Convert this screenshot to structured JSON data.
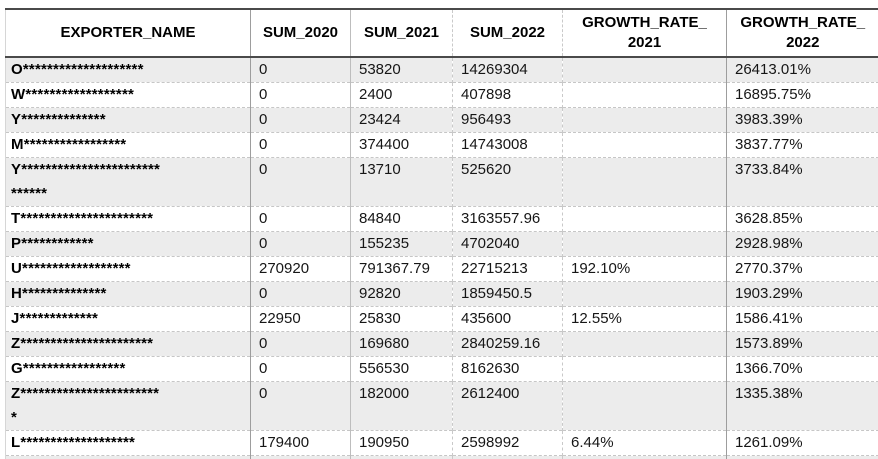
{
  "table": {
    "headers": [
      {
        "id": "exporter_name",
        "label": "EXPORTER_NAME"
      },
      {
        "id": "sum_2020",
        "label": "SUM_2020"
      },
      {
        "id": "sum_2021",
        "label": "SUM_2021"
      },
      {
        "id": "sum_2022",
        "label": "SUM_2022"
      },
      {
        "id": "growth_rate_2021",
        "label": "GROWTH_RATE_\n2021"
      },
      {
        "id": "growth_rate_2022",
        "label": "GROWTH_RATE_\n2022"
      }
    ],
    "rows": [
      {
        "exporter_name": "O********************",
        "sum_2020": "0",
        "sum_2021": "53820",
        "sum_2022": "14269304",
        "growth_rate_2021": "",
        "growth_rate_2022": "26413.01%"
      },
      {
        "exporter_name": "W******************",
        "sum_2020": "0",
        "sum_2021": "2400",
        "sum_2022": "407898",
        "growth_rate_2021": "",
        "growth_rate_2022": "16895.75%"
      },
      {
        "exporter_name": "Y**************",
        "sum_2020": "0",
        "sum_2021": "23424",
        "sum_2022": "956493",
        "growth_rate_2021": "",
        "growth_rate_2022": "3983.39%"
      },
      {
        "exporter_name": "M*****************",
        "sum_2020": "0",
        "sum_2021": "374400",
        "sum_2022": "14743008",
        "growth_rate_2021": "",
        "growth_rate_2022": "3837.77%"
      },
      {
        "exporter_name": "Y***********************\n******",
        "sum_2020": "0",
        "sum_2021": "13710",
        "sum_2022": "525620",
        "growth_rate_2021": "",
        "growth_rate_2022": "3733.84%"
      },
      {
        "exporter_name": "T**********************",
        "sum_2020": "0",
        "sum_2021": "84840",
        "sum_2022": "3163557.96",
        "growth_rate_2021": "",
        "growth_rate_2022": "3628.85%"
      },
      {
        "exporter_name": "P************",
        "sum_2020": "0",
        "sum_2021": "155235",
        "sum_2022": "4702040",
        "growth_rate_2021": "",
        "growth_rate_2022": "2928.98%"
      },
      {
        "exporter_name": "U******************",
        "sum_2020": "270920",
        "sum_2021": "791367.79",
        "sum_2022": "22715213",
        "growth_rate_2021": "192.10%",
        "growth_rate_2022": "2770.37%"
      },
      {
        "exporter_name": "H**************",
        "sum_2020": "0",
        "sum_2021": "92820",
        "sum_2022": "1859450.5",
        "growth_rate_2021": "",
        "growth_rate_2022": "1903.29%"
      },
      {
        "exporter_name": "J*************",
        "sum_2020": "22950",
        "sum_2021": "25830",
        "sum_2022": "435600",
        "growth_rate_2021": "12.55%",
        "growth_rate_2022": "1586.41%"
      },
      {
        "exporter_name": "Z**********************",
        "sum_2020": "0",
        "sum_2021": "169680",
        "sum_2022": "2840259.16",
        "growth_rate_2021": "",
        "growth_rate_2022": "1573.89%"
      },
      {
        "exporter_name": "G*****************",
        "sum_2020": "0",
        "sum_2021": "556530",
        "sum_2022": "8162630",
        "growth_rate_2021": "",
        "growth_rate_2022": "1366.70%"
      },
      {
        "exporter_name": "Z***********************\n*",
        "sum_2020": "0",
        "sum_2021": "182000",
        "sum_2022": "2612400",
        "growth_rate_2021": "",
        "growth_rate_2022": "1335.38%"
      },
      {
        "exporter_name": "L*******************",
        "sum_2020": "179400",
        "sum_2021": "190950",
        "sum_2022": "2598992",
        "growth_rate_2021": "6.44%",
        "growth_rate_2022": "1261.09%"
      }
    ]
  },
  "colors": {
    "band_fill": "#ececec",
    "header_border": "#4a4a4a",
    "grid_solid": "#9d9d9d",
    "grid_dashed": "#c6c6c6",
    "text": "#161616"
  }
}
